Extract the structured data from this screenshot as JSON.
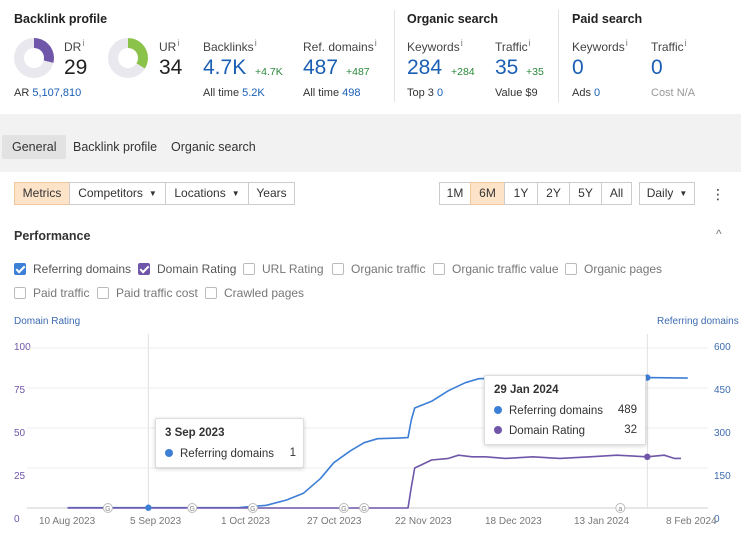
{
  "backlink_profile": {
    "title": "Backlink profile",
    "dr": {
      "label": "DR",
      "info": "i",
      "value": "29",
      "fill": 0.29
    },
    "ur": {
      "label": "UR",
      "info": "i",
      "value": "34",
      "fill": 0.34
    },
    "ar": {
      "label": "AR",
      "value": "5,107,810"
    },
    "backlinks": {
      "label": "Backlinks",
      "info": "i",
      "value": "4.7K",
      "delta": "+4.7K",
      "sub_label": "All time",
      "sub_value": "5.2K"
    },
    "ref_domains": {
      "label": "Ref. domains",
      "info": "i",
      "value": "487",
      "delta": "+487",
      "sub_label": "All time",
      "sub_value": "498"
    }
  },
  "organic_search": {
    "title": "Organic search",
    "keywords": {
      "label": "Keywords",
      "info": "i",
      "value": "284",
      "delta": "+284",
      "sub_label": "Top 3",
      "sub_value": "0"
    },
    "traffic": {
      "label": "Traffic",
      "info": "i",
      "value": "35",
      "delta": "+35",
      "sub_label": "Value",
      "sub_value": "$9"
    }
  },
  "paid_search": {
    "title": "Paid search",
    "keywords": {
      "label": "Keywords",
      "info": "i",
      "value": "0",
      "sub_label": "Ads",
      "sub_value": "0"
    },
    "traffic": {
      "label": "Traffic",
      "info": "i",
      "value": "0",
      "sub_label": "Cost",
      "sub_value": "N/A"
    }
  },
  "tabs": [
    {
      "label": "General",
      "active": true
    },
    {
      "label": "Backlink profile",
      "active": false
    },
    {
      "label": "Organic search",
      "active": false
    }
  ],
  "toolbar": {
    "metrics": "Metrics",
    "competitors": "Competitors",
    "locations": "Locations",
    "years": "Years",
    "ranges": [
      "1M",
      "6M",
      "1Y",
      "2Y",
      "5Y",
      "All"
    ],
    "active_range": "6M",
    "interval": "Daily",
    "caret": "▼",
    "more_icon": "⋮"
  },
  "performance": {
    "title": "Performance",
    "collapse_icon": "^",
    "metrics": [
      {
        "label": "Referring domains",
        "checked": true,
        "color": "#3d7fd6"
      },
      {
        "label": "Domain Rating",
        "checked": true,
        "color": "#6f56a8"
      },
      {
        "label": "URL Rating",
        "checked": false
      },
      {
        "label": "Organic traffic",
        "checked": false
      },
      {
        "label": "Organic traffic value",
        "checked": false
      },
      {
        "label": "Organic pages",
        "checked": false
      },
      {
        "label": "Paid traffic",
        "checked": false
      },
      {
        "label": "Paid traffic cost",
        "checked": false
      },
      {
        "label": "Crawled pages",
        "checked": false
      }
    ]
  },
  "chart_data": {
    "type": "line",
    "y_left_label": "Domain Rating",
    "y_right_label": "Referring domains",
    "y_left_ticks": [
      "100",
      "75",
      "50",
      "25",
      "0"
    ],
    "y_right_ticks": [
      "600",
      "450",
      "300",
      "150",
      "0"
    ],
    "ylim_left": [
      0,
      100
    ],
    "ylim_right": [
      0,
      600
    ],
    "x_ticks": [
      "10 Aug 2023",
      "5 Sep 2023",
      "1 Oct 2023",
      "27 Oct 2023",
      "22 Nov 2023",
      "18 Dec 2023",
      "13 Jan 2024",
      "8 Feb 2024"
    ],
    "xlim": [
      "2023-07-29",
      "2024-02-16"
    ],
    "grid": true,
    "series": [
      {
        "name": "Referring domains",
        "axis": "right",
        "color": "#3d7fd6",
        "x": [
          "2023-08-10",
          "2023-09-05",
          "2023-09-30",
          "2023-10-08",
          "2023-10-14",
          "2023-10-19",
          "2023-10-24",
          "2023-10-28",
          "2023-11-02",
          "2023-11-06",
          "2023-11-10",
          "2023-11-16",
          "2023-11-19",
          "2023-11-20",
          "2023-11-21",
          "2023-11-26",
          "2023-12-01",
          "2023-12-06",
          "2023-12-10",
          "2023-12-18",
          "2023-12-30",
          "2024-01-10",
          "2024-01-20",
          "2024-01-29",
          "2024-02-10"
        ],
        "y": [
          1,
          1,
          2,
          10,
          30,
          55,
          110,
          170,
          215,
          245,
          260,
          262,
          264,
          330,
          375,
          400,
          440,
          470,
          485,
          487,
          486,
          487,
          486,
          489,
          487
        ]
      },
      {
        "name": "Domain Rating",
        "axis": "left",
        "color": "#6f56a8",
        "x": [
          "2023-08-10",
          "2023-09-05",
          "2023-10-01",
          "2023-11-19",
          "2023-11-20",
          "2023-11-21",
          "2023-11-26",
          "2023-12-01",
          "2023-12-04",
          "2023-12-08",
          "2023-12-12",
          "2023-12-18",
          "2023-12-26",
          "2024-01-03",
          "2024-01-12",
          "2024-01-20",
          "2024-01-29",
          "2024-02-03",
          "2024-02-06",
          "2024-02-08"
        ],
        "y": [
          0,
          0,
          0,
          0,
          13,
          25,
          30,
          31,
          33,
          32,
          32,
          31,
          32,
          31,
          32,
          33,
          32,
          33,
          31,
          31
        ]
      }
    ],
    "tooltips": [
      {
        "date": "3 Sep 2023",
        "rows": [
          {
            "label": "Referring domains",
            "value": "1",
            "color": "#3d7fd6"
          }
        ]
      },
      {
        "date": "29 Jan 2024",
        "rows": [
          {
            "label": "Referring domains",
            "value": "489",
            "color": "#3d7fd6"
          },
          {
            "label": "Domain Rating",
            "value": "32",
            "color": "#6f56a8"
          }
        ]
      }
    ],
    "annotation_markers": [
      {
        "date": "2023-08-22",
        "symbol": "G"
      },
      {
        "date": "2023-09-16",
        "symbol": "G"
      },
      {
        "date": "2023-10-04",
        "symbol": "G"
      },
      {
        "date": "2023-10-31",
        "symbol": "G"
      },
      {
        "date": "2023-11-06",
        "symbol": "G"
      },
      {
        "date": "2024-01-21",
        "symbol": "a"
      }
    ]
  }
}
